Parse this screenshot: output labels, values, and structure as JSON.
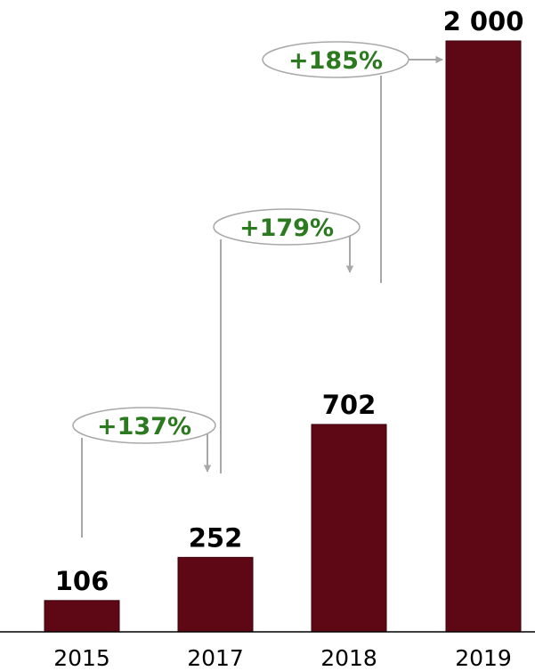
{
  "colors": {
    "bar": "#5e0816",
    "bar_edge": "#3a0008",
    "growth_text": "#2c7a1f",
    "connector": "#a8a8a8",
    "axis": "#000000"
  },
  "chart_data": {
    "type": "bar",
    "title": "",
    "xlabel": "",
    "ylabel": "",
    "categories": [
      "2015",
      "2017",
      "2018",
      "2019"
    ],
    "values": [
      106,
      252,
      702,
      2000
    ],
    "value_labels": [
      "106",
      "252",
      "702",
      "2 000"
    ],
    "ylim": [
      0,
      2000
    ],
    "grid": false,
    "legend": "none",
    "growth_annotations": [
      {
        "from": "2015",
        "to": "2017",
        "label": "+137%"
      },
      {
        "from": "2017",
        "to": "2018",
        "label": "+179%"
      },
      {
        "from": "2018",
        "to": "2019",
        "label": "+185%"
      }
    ]
  }
}
